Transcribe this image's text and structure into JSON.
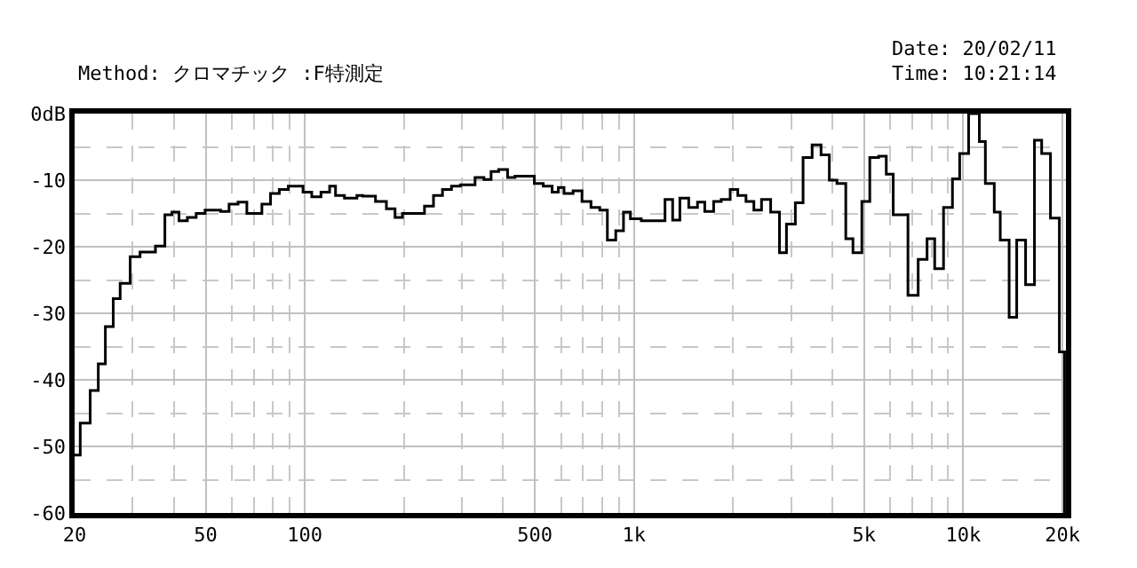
{
  "chart_data": {
    "type": "step",
    "annotations": [
      "Method: クロマチック :F特測定",
      "Date: 20/02/11",
      "Time: 10:21:14"
    ],
    "x": [
      20,
      20.8,
      22.3,
      23.6,
      24.8,
      26.2,
      27.5,
      29.5,
      31.6,
      35.2,
      37.6,
      39.5,
      41.5,
      44.0,
      46.8,
      49.8,
      55.5,
      58.9,
      62.7,
      66.7,
      74.1,
      78.7,
      83.7,
      89.1,
      98.8,
      105,
      112,
      119,
      124,
      132,
      144,
      150,
      164,
      177,
      188,
      198,
      231,
      246,
      262,
      279,
      297,
      329,
      350,
      368,
      388,
      413,
      435,
      498,
      530,
      564,
      589,
      613,
      653,
      695,
      740,
      787,
      830,
      880,
      929,
      975,
      1052,
      1242,
      1310,
      1378,
      1466,
      1559,
      1640,
      1745,
      1840,
      1959,
      2066,
      2188,
      2312,
      2439,
      2600,
      2765,
      2904,
      3090,
      3261,
      3475,
      3698,
      3919,
      4133,
      4397,
      4623,
      4920,
      5200,
      5534,
      5836,
      6126,
      6792,
      7295,
      7762,
      8187,
      8710,
      9270,
      9750,
      10380,
      11190,
      11670,
      12420,
      12950,
      13780,
      14530,
      15460,
      16450,
      17300,
      18400,
      19580,
      20300
    ],
    "series": [
      {
        "color": "#000000",
        "values": [
          -51.3,
          -46.5,
          -41.6,
          -37.6,
          -32,
          -27.8,
          -25.5,
          -21.5,
          -20.8,
          -19.9,
          -15.2,
          -14.8,
          -16.1,
          -15.6,
          -15.0,
          -14.5,
          -14.7,
          -13.6,
          -13.3,
          -15.0,
          -13.6,
          -12.0,
          -11.4,
          -10.9,
          -11.8,
          -12.5,
          -11.8,
          -10.9,
          -12.3,
          -12.7,
          -12.3,
          -12.4,
          -13.2,
          -14.3,
          -15.6,
          -15.0,
          -13.9,
          -12.3,
          -11.4,
          -10.9,
          -10.7,
          -9.6,
          -9.9,
          -8.7,
          -8.4,
          -9.6,
          -9.4,
          -10.5,
          -10.9,
          -11.8,
          -11.1,
          -12.0,
          -11.6,
          -13.2,
          -14.1,
          -14.5,
          -19.0,
          -17.6,
          -14.8,
          -15.8,
          -16.1,
          -12.9,
          -16.0,
          -12.7,
          -14.1,
          -13.3,
          -14.7,
          -13.2,
          -12.9,
          -11.4,
          -12.3,
          -13.2,
          -14.5,
          -12.9,
          -14.8,
          -20.9,
          -16.6,
          -13.4,
          -6.6,
          -4.7,
          -6.2,
          -10.0,
          -10.5,
          -18.8,
          -20.9,
          -13.2,
          -6.6,
          -6.4,
          -9.1,
          -15.2,
          -27.3,
          -21.9,
          -18.8,
          -23.3,
          -14.1,
          -9.8,
          -6.0,
          0,
          -4.2,
          -10.5,
          -14.8,
          -19.0,
          -30.6,
          -19.0,
          -25.7,
          -4.0,
          -6.0,
          -15.7,
          -35.8,
          -60
        ]
      }
    ],
    "log": "x",
    "xlim": [
      20,
      20500
    ],
    "xticks": [
      20,
      {
        "value": 30,
        "label": null
      },
      {
        "value": 40,
        "label": null
      },
      50,
      {
        "value": 60,
        "label": null
      },
      {
        "value": 70,
        "label": null
      },
      {
        "value": 80,
        "label": null
      },
      {
        "value": 90,
        "label": null
      },
      100,
      {
        "value": 200,
        "label": null
      },
      {
        "value": 300,
        "label": null
      },
      {
        "value": 400,
        "label": null
      },
      500,
      {
        "value": 600,
        "label": null
      },
      {
        "value": 700,
        "label": null
      },
      {
        "value": 800,
        "label": null
      },
      {
        "value": 900,
        "label": null
      },
      {
        "value": 1000,
        "label": "1k"
      },
      {
        "value": 2000,
        "label": null
      },
      {
        "value": 3000,
        "label": null
      },
      {
        "value": 4000,
        "label": null
      },
      {
        "value": 5000,
        "label": "5k"
      },
      {
        "value": 6000,
        "label": null
      },
      {
        "value": 7000,
        "label": null
      },
      {
        "value": 8000,
        "label": null
      },
      {
        "value": 9000,
        "label": null
      },
      {
        "value": 10000,
        "label": "10k"
      },
      {
        "value": 20000,
        "label": "20k"
      }
    ],
    "ylim": [
      -60,
      0
    ],
    "yticks": [
      {
        "value": 0,
        "label": "0dB"
      },
      {
        "value": -5,
        "label": null
      },
      -10,
      {
        "value": -15,
        "label": null
      },
      -20,
      {
        "value": -25,
        "label": null
      },
      -30,
      {
        "value": -35,
        "label": null
      },
      -40,
      {
        "value": -45,
        "label": null
      },
      -50,
      {
        "value": -55,
        "label": null
      },
      -60
    ],
    "grid": true,
    "line_style": "solid",
    "marker": "none"
  }
}
